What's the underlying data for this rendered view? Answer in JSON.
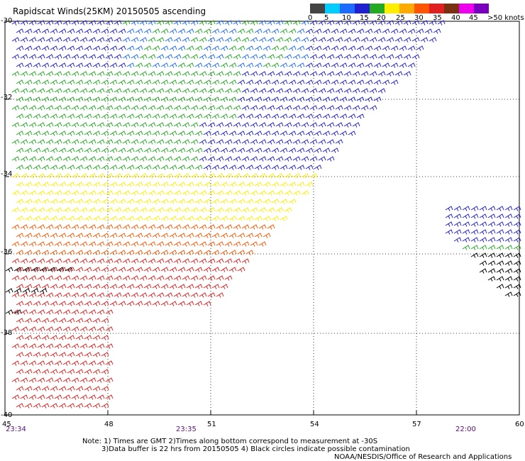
{
  "title": "Rapidscat Winds(25KM) 20150505 ascending",
  "colorbar": {
    "labels": [
      "0",
      "5",
      "10",
      "15",
      "20",
      "25",
      "30",
      "35",
      "40",
      "45",
      ">50 knots"
    ],
    "colors": [
      "#444444",
      "#00ccff",
      "#1e6cff",
      "#2020d0",
      "#22aa22",
      "#ffee00",
      "#ffaa00",
      "#ff5500",
      "#e02020",
      "#7a3010",
      "#ee00ee",
      "#7a00c0"
    ]
  },
  "y_axis": {
    "labels": [
      "-30",
      "-32",
      "-34",
      "-36",
      "-38",
      "-40"
    ]
  },
  "x_axis": {
    "labels": [
      "45",
      "48",
      "51",
      "54",
      "57",
      "60"
    ]
  },
  "grid": true,
  "times": [
    "23:34",
    "23:35",
    "22:00"
  ],
  "notes": [
    "Note: 1) Times are GMT 2)Times along bottom correspond to measurement at -30S",
    "3)Data buffer is 22 hrs from 20150505 4) Black circles indicate possible contamination",
    "NOAA/NESDIS/Office of Research and Applications"
  ]
}
